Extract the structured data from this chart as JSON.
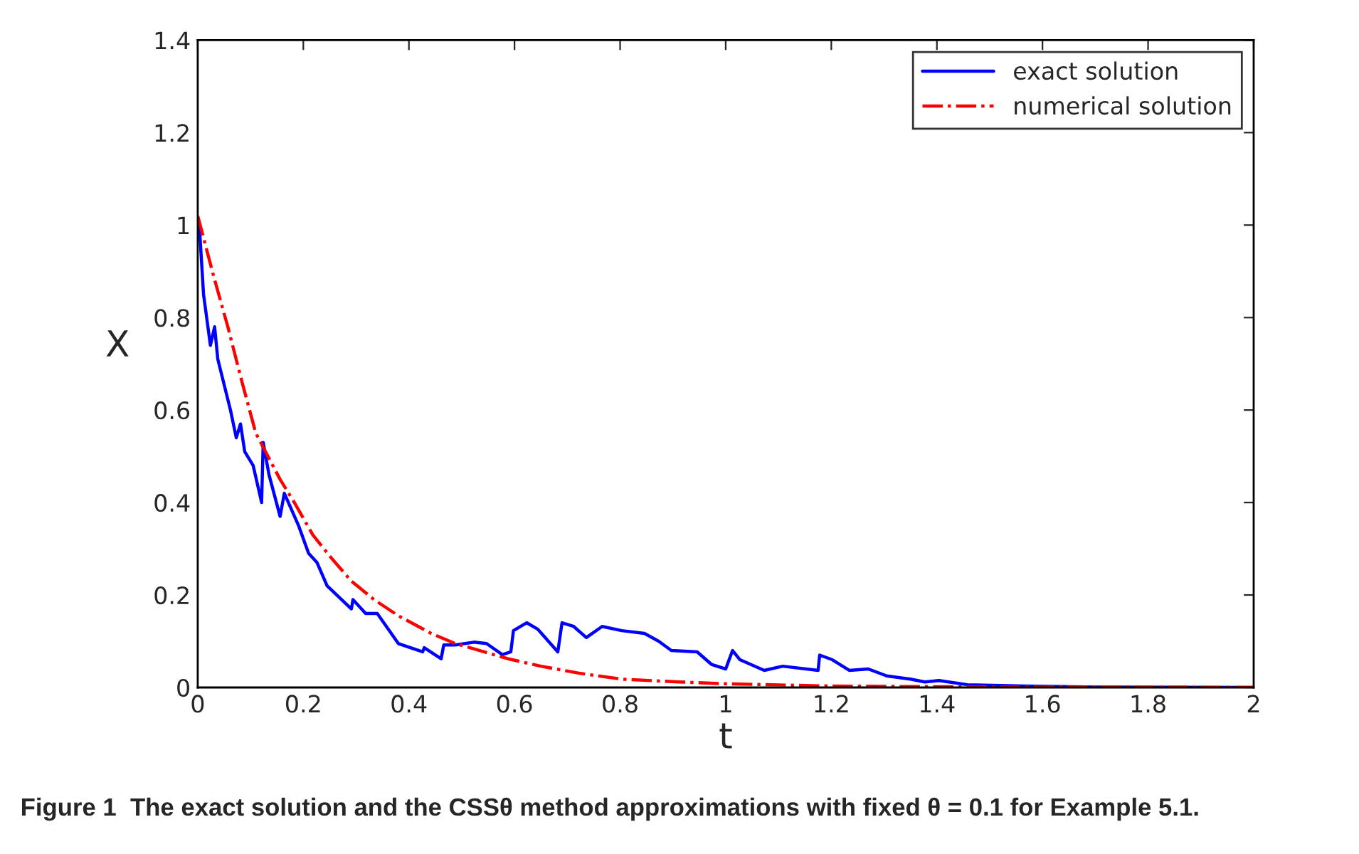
{
  "chart_data": {
    "type": "line",
    "xlabel": "t",
    "ylabel": "X",
    "xlim": [
      0,
      2
    ],
    "ylim": [
      0,
      1.4
    ],
    "xticks": [
      0,
      0.2,
      0.4,
      0.6,
      0.8,
      1,
      1.2,
      1.4,
      1.6,
      1.8,
      2
    ],
    "yticks": [
      0,
      0.2,
      0.4,
      0.6,
      0.8,
      1,
      1.2,
      1.4
    ],
    "grid": false,
    "legend": "top right",
    "marker": "none",
    "series": [
      {
        "name": "exact solution",
        "color": "#0000ff",
        "line_style": "solid",
        "x": [
          0,
          0.003,
          0.011,
          0.024,
          0.032,
          0.038,
          0.062,
          0.073,
          0.081,
          0.089,
          0.105,
          0.121,
          0.124,
          0.135,
          0.156,
          0.164,
          0.191,
          0.21,
          0.226,
          0.245,
          0.291,
          0.294,
          0.318,
          0.34,
          0.38,
          0.426,
          0.429,
          0.461,
          0.466,
          0.488,
          0.523,
          0.547,
          0.577,
          0.593,
          0.598,
          0.623,
          0.644,
          0.682,
          0.69,
          0.712,
          0.736,
          0.766,
          0.803,
          0.846,
          0.873,
          0.897,
          0.946,
          0.973,
          1.0,
          1.013,
          1.027,
          1.073,
          1.108,
          1.175,
          1.178,
          1.202,
          1.234,
          1.27,
          1.305,
          1.35,
          1.377,
          1.404,
          1.458,
          1.566,
          1.7,
          2
        ],
        "values": [
          1.0,
          1.0,
          0.85,
          0.74,
          0.78,
          0.71,
          0.6,
          0.54,
          0.57,
          0.51,
          0.48,
          0.4,
          0.53,
          0.46,
          0.37,
          0.42,
          0.35,
          0.29,
          0.27,
          0.22,
          0.17,
          0.19,
          0.16,
          0.16,
          0.095,
          0.077,
          0.086,
          0.062,
          0.092,
          0.092,
          0.098,
          0.095,
          0.071,
          0.077,
          0.123,
          0.14,
          0.126,
          0.077,
          0.14,
          0.132,
          0.108,
          0.132,
          0.123,
          0.117,
          0.1,
          0.08,
          0.077,
          0.05,
          0.04,
          0.08,
          0.06,
          0.037,
          0.046,
          0.037,
          0.07,
          0.06,
          0.037,
          0.04,
          0.025,
          0.018,
          0.012,
          0.015,
          0.006,
          0.003,
          0.001,
          0
        ]
      },
      {
        "name": "numerical solution",
        "color": "#ff0000",
        "line_style": "dashdot",
        "x": [
          0,
          0.03,
          0.057,
          0.084,
          0.11,
          0.156,
          0.183,
          0.218,
          0.253,
          0.291,
          0.334,
          0.38,
          0.442,
          0.488,
          0.588,
          0.65,
          0.722,
          0.803,
          0.911,
          1.0,
          1.2,
          1.5,
          2
        ],
        "values": [
          1.02,
          0.89,
          0.78,
          0.66,
          0.55,
          0.45,
          0.4,
          0.33,
          0.28,
          0.23,
          0.19,
          0.155,
          0.117,
          0.095,
          0.062,
          0.046,
          0.031,
          0.018,
          0.012,
          0.008,
          0.003,
          0.001,
          0
        ]
      }
    ],
    "annotations": [
      "Figure 1  The exact solution and the CSSθ method approximations with fixed θ = 0.1 for Example 5.1."
    ]
  }
}
